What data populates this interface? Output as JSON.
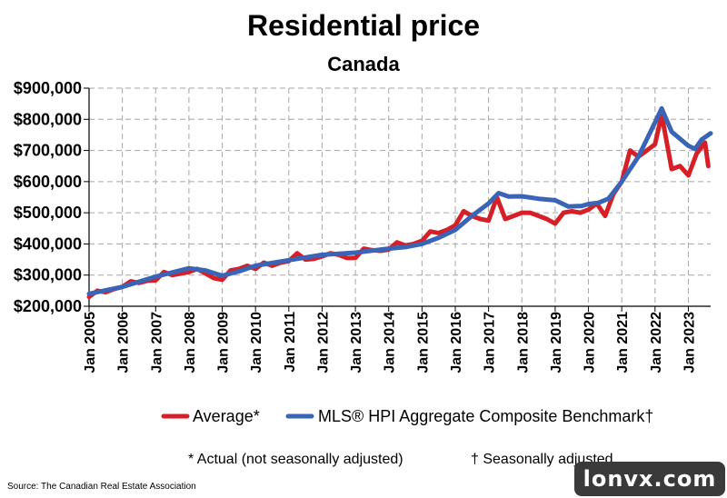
{
  "colors": {
    "average": "#d62027",
    "hpi": "#3a64b5",
    "grid": "#a6a6a6"
  },
  "footnotes": {
    "actual": "* Actual (not seasonally adjusted)",
    "seasonal": "† Seasonally adjusted"
  },
  "source": "Source: The Canadian Real Estate Association",
  "watermark": "lonvx.com",
  "chart_data": {
    "type": "line",
    "title": "Residential price",
    "subtitle": "Canada",
    "xlabel": "",
    "ylabel": "",
    "ylim": [
      200000,
      900000
    ],
    "yticks": [
      200000,
      300000,
      400000,
      500000,
      600000,
      700000,
      800000,
      900000
    ],
    "ytick_labels": [
      "$200,000",
      "$300,000",
      "$400,000",
      "$500,000",
      "$600,000",
      "$700,000",
      "$800,000",
      "$900,000"
    ],
    "xlim": [
      2005.0,
      2023.67
    ],
    "xticks": [
      "Jan 2005",
      "Jan 2006",
      "Jan 2007",
      "Jan 2008",
      "Jan 2009",
      "Jan 2010",
      "Jan 2011",
      "Jan 2012",
      "Jan 2013",
      "Jan 2014",
      "Jan 2015",
      "Jan 2016",
      "Jan 2017",
      "Jan 2018",
      "Jan 2019",
      "Jan 2020",
      "Jan 2021",
      "Jan 2022",
      "Jan 2023"
    ],
    "grid": true,
    "legend_position": "bottom",
    "series": [
      {
        "name": "Average*",
        "x": [
          2005.0,
          2005.25,
          2005.5,
          2005.75,
          2006.0,
          2006.25,
          2006.5,
          2006.75,
          2007.0,
          2007.25,
          2007.5,
          2007.75,
          2008.0,
          2008.25,
          2008.5,
          2008.75,
          2009.0,
          2009.25,
          2009.5,
          2009.75,
          2010.0,
          2010.25,
          2010.5,
          2010.75,
          2011.0,
          2011.25,
          2011.5,
          2011.75,
          2012.0,
          2012.25,
          2012.5,
          2012.75,
          2013.0,
          2013.25,
          2013.5,
          2013.75,
          2014.0,
          2014.25,
          2014.5,
          2014.75,
          2015.0,
          2015.25,
          2015.5,
          2015.75,
          2016.0,
          2016.25,
          2016.5,
          2016.75,
          2017.0,
          2017.25,
          2017.5,
          2017.75,
          2018.0,
          2018.25,
          2018.5,
          2018.75,
          2019.0,
          2019.25,
          2019.5,
          2019.75,
          2020.0,
          2020.25,
          2020.5,
          2020.75,
          2021.0,
          2021.25,
          2021.5,
          2021.75,
          2022.0,
          2022.2,
          2022.5,
          2022.75,
          2023.0,
          2023.25,
          2023.5,
          2023.6
        ],
        "values": [
          230000,
          250000,
          245000,
          255000,
          262000,
          280000,
          275000,
          282000,
          283000,
          310000,
          300000,
          305000,
          310000,
          320000,
          305000,
          290000,
          285000,
          315000,
          320000,
          330000,
          320000,
          340000,
          330000,
          340000,
          345000,
          370000,
          350000,
          352000,
          360000,
          370000,
          365000,
          355000,
          355000,
          385000,
          380000,
          378000,
          382000,
          405000,
          395000,
          400000,
          410000,
          440000,
          435000,
          445000,
          460000,
          505000,
          490000,
          480000,
          475000,
          550000,
          480000,
          490000,
          500000,
          500000,
          490000,
          480000,
          465000,
          500000,
          505000,
          500000,
          510000,
          530000,
          490000,
          560000,
          600000,
          700000,
          680000,
          700000,
          720000,
          815000,
          640000,
          650000,
          620000,
          690000,
          725000,
          650000
        ]
      },
      {
        "name": "MLS® HPI Aggregate Composite Benchmark†",
        "x": [
          2005.0,
          2006.0,
          2007.0,
          2008.0,
          2008.5,
          2009.0,
          2009.5,
          2010.0,
          2011.0,
          2012.0,
          2013.0,
          2014.0,
          2014.5,
          2015.0,
          2015.5,
          2016.0,
          2016.5,
          2017.0,
          2017.3,
          2017.6,
          2018.0,
          2018.5,
          2019.0,
          2019.4,
          2019.8,
          2020.0,
          2020.3,
          2020.6,
          2021.0,
          2021.5,
          2022.0,
          2022.2,
          2022.5,
          2023.0,
          2023.2,
          2023.4,
          2023.67
        ],
        "values": [
          240000,
          262000,
          295000,
          322000,
          315000,
          298000,
          312000,
          330000,
          348000,
          365000,
          372000,
          385000,
          390000,
          400000,
          420000,
          445000,
          490000,
          530000,
          563000,
          552000,
          553000,
          545000,
          540000,
          520000,
          522000,
          528000,
          532000,
          545000,
          600000,
          680000,
          790000,
          835000,
          760000,
          715000,
          705000,
          735000,
          755000
        ]
      }
    ]
  }
}
